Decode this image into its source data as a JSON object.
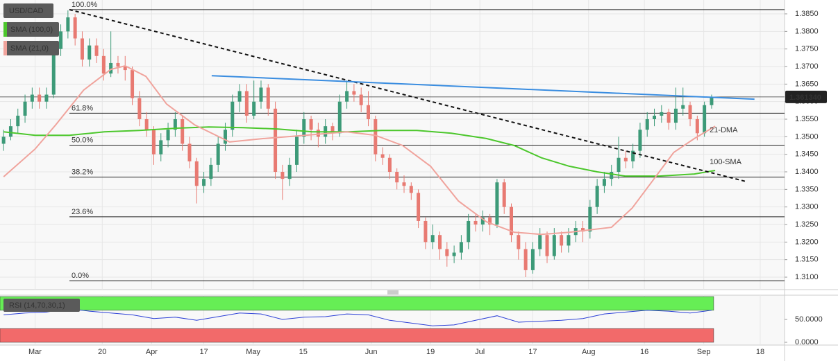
{
  "chart_data": [
    {
      "type": "candlestick",
      "title": "USD/CAD",
      "up_color": "#3d9a78",
      "down_color": "#e87a72",
      "candles": [
        [
          1.348,
          1.352,
          1.346,
          1.35
        ],
        [
          1.35,
          1.355,
          1.349,
          1.353
        ],
        [
          1.353,
          1.358,
          1.351,
          1.356
        ],
        [
          1.356,
          1.362,
          1.354,
          1.36
        ],
        [
          1.36,
          1.364,
          1.358,
          1.362
        ],
        [
          1.362,
          1.364,
          1.358,
          1.36
        ],
        [
          1.36,
          1.364,
          1.358,
          1.362
        ],
        [
          1.362,
          1.377,
          1.361,
          1.375
        ],
        [
          1.375,
          1.382,
          1.373,
          1.38
        ],
        [
          1.38,
          1.386,
          1.378,
          1.384
        ],
        [
          1.384,
          1.385,
          1.376,
          1.378
        ],
        [
          1.378,
          1.38,
          1.37,
          1.372
        ],
        [
          1.372,
          1.378,
          1.37,
          1.376
        ],
        [
          1.376,
          1.378,
          1.371,
          1.373
        ],
        [
          1.373,
          1.375,
          1.366,
          1.368
        ],
        [
          1.368,
          1.38,
          1.367,
          1.371
        ],
        [
          1.371,
          1.373,
          1.368,
          1.37
        ],
        [
          1.37,
          1.373,
          1.366,
          1.369
        ],
        [
          1.369,
          1.37,
          1.359,
          1.361
        ],
        [
          1.361,
          1.363,
          1.353,
          1.355
        ],
        [
          1.355,
          1.357,
          1.35,
          1.352
        ],
        [
          1.352,
          1.353,
          1.342,
          1.345
        ],
        [
          1.345,
          1.351,
          1.343,
          1.349
        ],
        [
          1.349,
          1.354,
          1.347,
          1.352
        ],
        [
          1.352,
          1.357,
          1.35,
          1.355
        ],
        [
          1.355,
          1.356,
          1.346,
          1.348
        ],
        [
          1.348,
          1.35,
          1.341,
          1.343
        ],
        [
          1.343,
          1.344,
          1.331,
          1.336
        ],
        [
          1.336,
          1.34,
          1.334,
          1.338
        ],
        [
          1.338,
          1.344,
          1.336,
          1.342
        ],
        [
          1.342,
          1.35,
          1.34,
          1.348
        ],
        [
          1.348,
          1.354,
          1.346,
          1.352
        ],
        [
          1.352,
          1.362,
          1.35,
          1.36
        ],
        [
          1.36,
          1.365,
          1.357,
          1.363
        ],
        [
          1.363,
          1.365,
          1.354,
          1.356
        ],
        [
          1.356,
          1.366,
          1.355,
          1.36
        ],
        [
          1.36,
          1.366,
          1.358,
          1.364
        ],
        [
          1.364,
          1.365,
          1.356,
          1.358
        ],
        [
          1.358,
          1.36,
          1.338,
          1.34
        ],
        [
          1.34,
          1.342,
          1.332,
          1.338
        ],
        [
          1.338,
          1.344,
          1.336,
          1.342
        ],
        [
          1.342,
          1.352,
          1.34,
          1.35
        ],
        [
          1.35,
          1.357,
          1.348,
          1.355
        ],
        [
          1.355,
          1.356,
          1.349,
          1.352
        ],
        [
          1.352,
          1.354,
          1.347,
          1.35
        ],
        [
          1.35,
          1.355,
          1.348,
          1.353
        ],
        [
          1.353,
          1.354,
          1.349,
          1.351
        ],
        [
          1.351,
          1.362,
          1.35,
          1.36
        ],
        [
          1.36,
          1.366,
          1.358,
          1.363
        ],
        [
          1.363,
          1.365,
          1.36,
          1.362
        ],
        [
          1.362,
          1.364,
          1.357,
          1.359
        ],
        [
          1.359,
          1.363,
          1.353,
          1.355
        ],
        [
          1.355,
          1.356,
          1.343,
          1.345
        ],
        [
          1.345,
          1.347,
          1.342,
          1.344
        ],
        [
          1.344,
          1.345,
          1.338,
          1.34
        ],
        [
          1.34,
          1.341,
          1.335,
          1.337
        ],
        [
          1.337,
          1.339,
          1.334,
          1.336
        ],
        [
          1.336,
          1.337,
          1.332,
          1.334
        ],
        [
          1.334,
          1.335,
          1.324,
          1.326
        ],
        [
          1.326,
          1.327,
          1.318,
          1.32
        ],
        [
          1.32,
          1.325,
          1.318,
          1.322
        ],
        [
          1.322,
          1.323,
          1.315,
          1.318
        ],
        [
          1.318,
          1.32,
          1.313,
          1.316
        ],
        [
          1.316,
          1.319,
          1.314,
          1.317
        ],
        [
          1.317,
          1.322,
          1.315,
          1.32
        ],
        [
          1.32,
          1.328,
          1.318,
          1.326
        ],
        [
          1.326,
          1.328,
          1.323,
          1.325
        ],
        [
          1.325,
          1.329,
          1.323,
          1.327
        ],
        [
          1.327,
          1.328,
          1.322,
          1.325
        ],
        [
          1.325,
          1.338,
          1.324,
          1.337
        ],
        [
          1.337,
          1.338,
          1.328,
          1.33
        ],
        [
          1.33,
          1.331,
          1.32,
          1.322
        ],
        [
          1.322,
          1.323,
          1.315,
          1.318
        ],
        [
          1.318,
          1.32,
          1.31,
          1.312
        ],
        [
          1.312,
          1.32,
          1.311,
          1.318
        ],
        [
          1.318,
          1.324,
          1.316,
          1.322
        ],
        [
          1.322,
          1.323,
          1.314,
          1.316
        ],
        [
          1.316,
          1.324,
          1.315,
          1.322
        ],
        [
          1.322,
          1.323,
          1.317,
          1.319
        ],
        [
          1.319,
          1.324,
          1.317,
          1.322
        ],
        [
          1.322,
          1.326,
          1.32,
          1.324
        ],
        [
          1.324,
          1.326,
          1.32,
          1.323
        ],
        [
          1.323,
          1.332,
          1.321,
          1.33
        ],
        [
          1.33,
          1.338,
          1.328,
          1.336
        ],
        [
          1.336,
          1.34,
          1.334,
          1.338
        ],
        [
          1.338,
          1.342,
          1.336,
          1.34
        ],
        [
          1.34,
          1.35,
          1.338,
          1.344
        ],
        [
          1.344,
          1.346,
          1.341,
          1.343
        ],
        [
          1.343,
          1.348,
          1.341,
          1.346
        ],
        [
          1.346,
          1.354,
          1.344,
          1.352
        ],
        [
          1.352,
          1.357,
          1.35,
          1.355
        ],
        [
          1.355,
          1.358,
          1.353,
          1.356
        ],
        [
          1.356,
          1.359,
          1.354,
          1.357
        ],
        [
          1.357,
          1.358,
          1.352,
          1.354
        ],
        [
          1.354,
          1.364,
          1.352,
          1.358
        ],
        [
          1.358,
          1.364,
          1.356,
          1.359
        ],
        [
          1.359,
          1.36,
          1.353,
          1.355
        ],
        [
          1.355,
          1.356,
          1.349,
          1.351
        ],
        [
          1.351,
          1.36,
          1.35,
          1.359
        ],
        [
          1.359,
          1.362,
          1.358,
          1.3613
        ]
      ],
      "xlim": [
        -0.5,
        109.2
      ],
      "xticks": [
        {
          "value": 4.4,
          "label": "Mar"
        },
        {
          "value": 13.8,
          "label": "20"
        },
        {
          "value": 20.7,
          "label": "Apr"
        },
        {
          "value": 28,
          "label": "17"
        },
        {
          "value": 34.9,
          "label": "May"
        },
        {
          "value": 41.9,
          "label": "15"
        },
        {
          "value": 51.4,
          "label": "Jun"
        },
        {
          "value": 59.7,
          "label": "19"
        },
        {
          "value": 66.6,
          "label": "Jul"
        },
        {
          "value": 74,
          "label": "17"
        },
        {
          "value": 81.8,
          "label": "Aug"
        },
        {
          "value": 89.6,
          "label": "16"
        },
        {
          "value": 97.9,
          "label": "Sep"
        },
        {
          "value": 105.8,
          "label": "18"
        }
      ],
      "ylim": [
        1.30645,
        1.38895
      ],
      "yticks": [
        {
          "value": 1.31,
          "label": "1.3100"
        },
        {
          "value": 1.315,
          "label": "1.3150"
        },
        {
          "value": 1.32,
          "label": "1.3200"
        },
        {
          "value": 1.325,
          "label": "1.3250"
        },
        {
          "value": 1.33,
          "label": "1.3300"
        },
        {
          "value": 1.335,
          "label": "1.3350"
        },
        {
          "value": 1.34,
          "label": "1.3400"
        },
        {
          "value": 1.345,
          "label": "1.3450"
        },
        {
          "value": 1.35,
          "label": "1.3500"
        },
        {
          "value": 1.355,
          "label": "1.3550"
        },
        {
          "value": 1.36,
          "label": "1.3600"
        },
        {
          "value": 1.365,
          "label": "1.3650"
        },
        {
          "value": 1.37,
          "label": "1.3700"
        },
        {
          "value": 1.375,
          "label": "1.3750"
        },
        {
          "value": 1.38,
          "label": "1.3800"
        },
        {
          "value": 1.385,
          "label": "1.3850"
        }
      ],
      "grid": true,
      "last_price": {
        "value": 1.36134,
        "label": "1.361340"
      },
      "series": [
        {
          "name": "SMA (100,0)",
          "label": "100-SMA",
          "color": "#4cc72c",
          "x": [
            0,
            4.4,
            9.2,
            14.1,
            19,
            23.8,
            28.7,
            33.5,
            38.4,
            43.2,
            48.1,
            52.9,
            57.8,
            62.6,
            67.5,
            71.4,
            75.2,
            79.1,
            83,
            86.9,
            91.7,
            96.6,
            99.5
          ],
          "values": [
            1.3514,
            1.3504,
            1.3504,
            1.3514,
            1.3518,
            1.3524,
            1.3528,
            1.3526,
            1.3522,
            1.3514,
            1.3514,
            1.3518,
            1.3518,
            1.351,
            1.3495,
            1.3475,
            1.344,
            1.3416,
            1.34,
            1.3388,
            1.3388,
            1.3394,
            1.3404
          ]
        },
        {
          "name": "SMA (21,0)",
          "label": "21-DMA",
          "color": "#f0a39c",
          "x": [
            0,
            4.4,
            7.3,
            11.2,
            15,
            17,
            19.9,
            22.8,
            26.7,
            31.6,
            36.4,
            42.2,
            48,
            52,
            55.8,
            59.7,
            63.6,
            67.5,
            71.4,
            75.2,
            79.1,
            85,
            87.9,
            90.8,
            93.7,
            96.6,
            99.5
          ],
          "values": [
            1.3386,
            1.3465,
            1.3534,
            1.3633,
            1.3692,
            1.3702,
            1.3672,
            1.3593,
            1.3534,
            1.3485,
            1.3495,
            1.3504,
            1.3514,
            1.3504,
            1.3475,
            1.3416,
            1.3317,
            1.3258,
            1.3228,
            1.3222,
            1.3228,
            1.3242,
            1.3297,
            1.3376,
            1.3455,
            1.3495,
            1.353
          ]
        }
      ],
      "trendlines": [
        {
          "x": [
            9.2,
            103.9
          ],
          "values": [
            1.3862,
            1.3372
          ],
          "color": "#111111",
          "dashed": true
        },
        {
          "x": [
            29.1,
            105
          ],
          "values": [
            1.3674,
            1.3607
          ],
          "color": "#3a8de0",
          "dashed": false
        }
      ],
      "fib_levels": [
        {
          "value": 1.3862,
          "label": "100.0%"
        },
        {
          "value": 1.3567,
          "label": "61.8%"
        },
        {
          "value": 1.3476,
          "label": "50.0%"
        },
        {
          "value": 1.3385,
          "label": "38.2%"
        },
        {
          "value": 1.3272,
          "label": "23.6%"
        },
        {
          "value": 1.309,
          "label": "0.0%"
        }
      ]
    },
    {
      "type": "line",
      "title": "RSI (14,70,30,1)",
      "color": "#2b3fd6",
      "x": [
        0,
        3,
        6,
        9,
        12,
        15,
        18,
        21,
        24,
        27,
        30,
        33,
        36,
        39,
        42,
        45,
        48,
        51,
        54,
        57,
        60,
        63,
        66,
        69,
        72,
        75,
        78,
        81,
        84,
        87,
        90,
        93,
        96,
        99
      ],
      "values": [
        60,
        64,
        66,
        74,
        68,
        64,
        60,
        52,
        55,
        48,
        56,
        64,
        62,
        50,
        55,
        56,
        62,
        60,
        48,
        42,
        36,
        38,
        48,
        58,
        44,
        46,
        48,
        52,
        62,
        66,
        70,
        68,
        64,
        70
      ],
      "overbought": 70,
      "oversold": 30,
      "ylim": [
        0,
        100
      ],
      "yticks": [
        {
          "value": 0,
          "label": "0.0000"
        },
        {
          "value": 50,
          "label": "50.0000"
        }
      ]
    }
  ]
}
